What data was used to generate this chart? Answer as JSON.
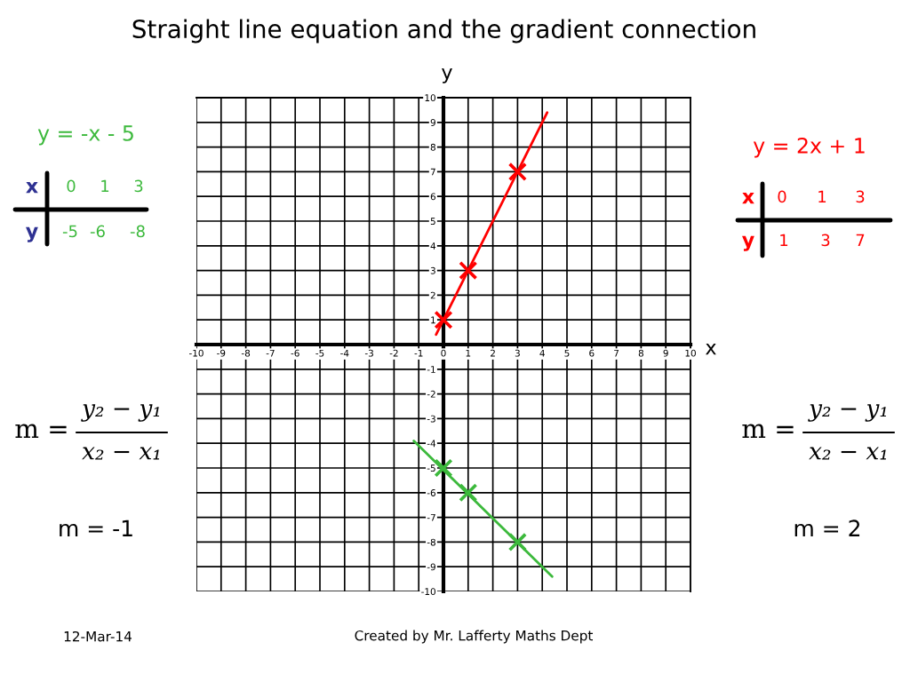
{
  "chart_data": {
    "type": "line",
    "title": "Straight line equation and the gradient connection",
    "xlabel": "x",
    "ylabel": "y",
    "xlim": [
      -10,
      10
    ],
    "ylim": [
      -10,
      10
    ],
    "xticks": [
      -10,
      -9,
      -8,
      -7,
      -6,
      -5,
      -4,
      -3,
      -2,
      -1,
      0,
      1,
      2,
      3,
      4,
      5,
      6,
      7,
      8,
      9,
      10
    ],
    "yticks": [
      10,
      9,
      8,
      7,
      6,
      5,
      4,
      3,
      2,
      1,
      -1,
      -2,
      -3,
      -4,
      -5,
      -6,
      -7,
      -8,
      -9,
      -10
    ],
    "grid": true,
    "series": [
      {
        "name": "y = -x - 5",
        "color": "#3cb93c",
        "x": [
          -1.2,
          4.4
        ],
        "values": [
          -3.9,
          -9.4
        ]
      },
      {
        "type": "scatter",
        "color": "#3cb93c",
        "marker": "cross",
        "x": [
          0,
          1,
          3
        ],
        "values": [
          -5,
          -6,
          -8
        ]
      },
      {
        "name": "y = 2x + 1",
        "color": "#ff0000",
        "x": [
          -0.3,
          4.2
        ],
        "values": [
          0.4,
          9.4
        ]
      },
      {
        "type": "scatter",
        "color": "#ff0000",
        "marker": "cross",
        "x": [
          0,
          1,
          3
        ],
        "values": [
          1,
          3,
          7
        ]
      }
    ],
    "annotations": [
      "x",
      "0",
      "1",
      "3",
      "y",
      "-5",
      "-6",
      "-8",
      "x",
      "0",
      "1",
      "3",
      "y",
      "1",
      "3",
      "7",
      "m =",
      "y₂ − y₁",
      "x₂ − x₁",
      "m = -1",
      "m =",
      "y₂ − y₁",
      "x₂ − x₁",
      "m = 2",
      "12-Mar-14",
      "Created by Mr. Lafferty Maths Dept"
    ]
  }
}
